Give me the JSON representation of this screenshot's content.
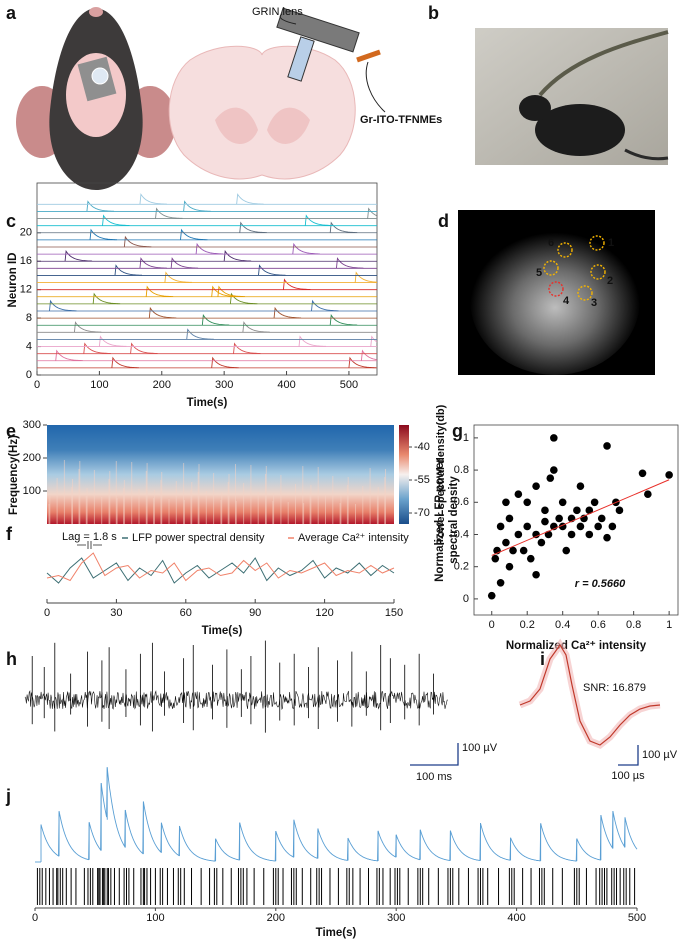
{
  "panel_a": {
    "label": "a",
    "grin_label": "GRIN lens",
    "electrode_label": "Gr-ITO-TFNMEs"
  },
  "panel_b": {
    "label": "b"
  },
  "panel_c": {
    "label": "c",
    "type": "line",
    "xlabel": "Time(s)",
    "ylabel": "Neuron ID",
    "xlim": [
      0,
      545
    ],
    "ylim": [
      0,
      27
    ],
    "xticks": [
      0,
      100,
      200,
      300,
      400,
      500
    ],
    "yticks": [
      0,
      4,
      8,
      12,
      16,
      20
    ],
    "neurons": [
      {
        "color": "#c0392b",
        "events": [
          120,
          280,
          500
        ]
      },
      {
        "color": "#e0719e",
        "events": [
          30,
          520
        ]
      },
      {
        "color": "#d94f4f",
        "events": [
          75,
          150,
          315
        ]
      },
      {
        "color": "#e9a3c9",
        "events": [
          100,
          420,
          535
        ]
      },
      {
        "color": "#5b7fa6",
        "events": [
          240
        ]
      },
      {
        "color": "#8a8a8a",
        "events": [
          60,
          330
        ]
      },
      {
        "color": "#2e8b57",
        "events": [
          265,
          470
        ]
      },
      {
        "color": "#a0522d",
        "events": [
          180,
          380
        ]
      },
      {
        "color": "#3b6ea8",
        "events": [
          20,
          440
        ]
      },
      {
        "color": "#6b8e23",
        "events": [
          90,
          310
        ]
      },
      {
        "color": "#e69f00",
        "events": [
          175,
          280,
          290
        ]
      },
      {
        "color": "#d62728",
        "events": [
          395
        ]
      },
      {
        "color": "#f2b134",
        "events": [
          205,
          510
        ]
      },
      {
        "color": "#2b4f81",
        "events": [
          125,
          355
        ]
      },
      {
        "color": "#7b3f8f",
        "events": [
          165,
          215,
          480
        ]
      },
      {
        "color": "#4b2a6b",
        "events": [
          45,
          300
        ]
      },
      {
        "color": "#9b59b6",
        "events": [
          255,
          410
        ]
      },
      {
        "color": "#8c564b",
        "events": [
          140
        ]
      },
      {
        "color": "#1f77b4",
        "events": [
          85,
          230
        ]
      },
      {
        "color": "#5d6d7e",
        "events": [
          325,
          470
        ]
      },
      {
        "color": "#17becf",
        "events": [
          105,
          430
        ]
      },
      {
        "color": "#7f8c8d",
        "events": [
          190,
          530
        ]
      },
      {
        "color": "#48a9c5",
        "events": [
          80,
          235
        ]
      },
      {
        "color": "#9ecae1",
        "events": [
          165,
          320
        ]
      }
    ]
  },
  "panel_d": {
    "label": "d",
    "rois": [
      {
        "label": "1",
        "color": "#f5b400"
      },
      {
        "label": "2",
        "color": "#f5b400"
      },
      {
        "label": "3",
        "color": "#f5b400"
      },
      {
        "label": "4",
        "color": "#e8302a"
      },
      {
        "label": "5",
        "color": "#f5b400"
      },
      {
        "label": "6",
        "color": "#f5b400"
      }
    ]
  },
  "panel_e": {
    "label": "e",
    "type": "heatmap",
    "ylabel": "Frequency(Hz)",
    "ylim": [
      0,
      300
    ],
    "yticks": [
      100,
      200,
      300
    ],
    "colorbar_label": "Power spectral density(db)",
    "zlim": [
      -30,
      -75
    ],
    "zticks": [
      -40,
      -55,
      -70
    ]
  },
  "panel_f": {
    "label": "f",
    "type": "line",
    "xlabel": "Time(s)",
    "xlim": [
      0,
      150
    ],
    "ylim": [
      0,
      1
    ],
    "xticks": [
      0,
      30,
      60,
      90,
      120,
      150
    ],
    "annotation": "Lag = 1.8 s",
    "x": [
      0,
      5,
      10,
      15,
      20,
      25,
      30,
      35,
      40,
      45,
      50,
      55,
      60,
      65,
      70,
      75,
      80,
      85,
      90,
      95,
      100,
      105,
      110,
      115,
      120,
      125,
      130,
      135,
      140,
      145,
      150
    ],
    "series": [
      {
        "name": "LFP power spectral density",
        "color": "#3d6f74",
        "values": [
          0.5,
          0.3,
          0.6,
          0.8,
          0.4,
          0.55,
          0.7,
          0.35,
          0.6,
          0.45,
          0.75,
          0.3,
          0.5,
          0.65,
          0.4,
          0.55,
          0.7,
          0.5,
          0.8,
          0.35,
          0.6,
          0.45,
          0.55,
          0.75,
          0.4,
          0.6,
          0.5,
          0.7,
          0.45,
          0.65,
          0.5
        ]
      },
      {
        "name": "Average Ca²⁺ intensity",
        "color": "#f0826a",
        "values": [
          0.4,
          0.45,
          0.35,
          0.7,
          0.9,
          0.45,
          0.6,
          0.65,
          0.4,
          0.55,
          0.5,
          0.7,
          0.35,
          0.55,
          0.6,
          0.45,
          0.5,
          0.75,
          0.55,
          0.7,
          0.4,
          0.55,
          0.5,
          0.6,
          0.7,
          0.45,
          0.55,
          0.5,
          0.65,
          0.5,
          0.6
        ]
      }
    ]
  },
  "panel_g": {
    "label": "g",
    "type": "scatter",
    "xlabel": "Normalized Ca²⁺ intensity",
    "ylabel": [
      "Normalized LFP power",
      "spectral density"
    ],
    "annotation": "r = 0.5660",
    "xlim": [
      -0.1,
      1.05
    ],
    "ylim": [
      -0.1,
      1.08
    ],
    "xticks": [
      0,
      0.2,
      0.4,
      0.6,
      0.8,
      1
    ],
    "yticks": [
      0,
      0.2,
      0.4,
      0.6,
      0.8,
      1
    ],
    "x": [
      0,
      0.02,
      0.03,
      0.05,
      0.05,
      0.08,
      0.1,
      0.1,
      0.12,
      0.15,
      0.15,
      0.18,
      0.2,
      0.2,
      0.22,
      0.25,
      0.25,
      0.28,
      0.3,
      0.3,
      0.32,
      0.33,
      0.35,
      0.35,
      0.38,
      0.4,
      0.4,
      0.42,
      0.45,
      0.45,
      0.48,
      0.5,
      0.5,
      0.52,
      0.55,
      0.55,
      0.58,
      0.6,
      0.62,
      0.65,
      0.68,
      0.7,
      0.72,
      0.85,
      0.88,
      1,
      0.08,
      0.35,
      0.65,
      0.25
    ],
    "y": [
      0.02,
      0.25,
      0.3,
      0.1,
      0.45,
      0.35,
      0.5,
      0.2,
      0.3,
      0.65,
      0.4,
      0.3,
      0.6,
      0.45,
      0.25,
      0.4,
      0.7,
      0.35,
      0.48,
      0.55,
      0.4,
      0.75,
      0.45,
      1.0,
      0.5,
      0.45,
      0.6,
      0.3,
      0.5,
      0.4,
      0.55,
      0.45,
      0.7,
      0.5,
      0.55,
      0.4,
      0.6,
      0.45,
      0.5,
      0.95,
      0.45,
      0.6,
      0.55,
      0.78,
      0.65,
      0.77,
      0.6,
      0.8,
      0.38,
      0.15
    ],
    "fit": {
      "x": [
        0,
        1
      ],
      "y": [
        0.27,
        0.74
      ],
      "color": "#e8302a"
    }
  },
  "panel_h": {
    "label": "h",
    "type": "trace",
    "xlim": [
      0,
      880
    ],
    "spike_times": [
      15,
      40,
      62,
      95,
      130,
      160,
      175,
      210,
      240,
      265,
      290,
      330,
      350,
      390,
      420,
      450,
      470,
      500,
      530,
      560,
      590,
      610,
      650,
      680,
      710,
      740,
      760,
      790,
      820,
      850
    ],
    "spike_amplitudes": [
      200,
      150,
      260,
      120,
      220,
      180,
      240,
      140,
      210,
      260,
      130,
      190,
      250,
      160,
      230,
      140,
      200,
      270,
      170,
      210,
      150,
      240,
      180,
      220,
      130,
      250,
      190,
      160,
      210,
      120
    ],
    "scale_x": {
      "value": 100,
      "label": "100 ms"
    },
    "scale_y": {
      "value": 100,
      "label": "100 µV"
    }
  },
  "panel_i": {
    "label": "i",
    "annotation": "SNR: 16.879",
    "x": [
      0,
      50,
      100,
      150,
      200,
      230,
      260,
      300,
      350,
      400,
      450,
      500,
      550,
      600,
      650,
      700
    ],
    "values": [
      0,
      20,
      80,
      230,
      300,
      250,
      100,
      -80,
      -180,
      -200,
      -160,
      -100,
      -50,
      -20,
      -5,
      0
    ],
    "color": "#c0392b",
    "scale_x": {
      "value": 100,
      "label": "100 µs"
    },
    "scale_y": {
      "value": 100,
      "label": "100 µV"
    }
  },
  "panel_j": {
    "label": "j",
    "xlabel": "Time(s)",
    "xlim": [
      0,
      500
    ],
    "xticks": [
      0,
      100,
      200,
      300,
      400,
      500
    ],
    "color": "#5a9fd4",
    "event_times": [
      5,
      20,
      45,
      55,
      60,
      75,
      90,
      105,
      120,
      150,
      170,
      200,
      215,
      235,
      260,
      285,
      300,
      320,
      345,
      370,
      395,
      420,
      450,
      470,
      480,
      490
    ],
    "event_amplitudes": [
      0.5,
      0.6,
      0.5,
      0.9,
      0.7,
      0.5,
      0.7,
      0.4,
      0.4,
      0.3,
      0.5,
      0.4,
      0.5,
      0.4,
      0.3,
      0.4,
      0.3,
      0.4,
      0.4,
      0.5,
      0.3,
      0.5,
      0.3,
      0.6,
      0.5,
      0.4
    ],
    "spike_times": [
      2,
      4,
      6,
      9,
      12,
      15,
      18,
      19,
      21,
      23,
      26,
      30,
      34,
      41,
      44,
      46,
      48,
      52,
      53,
      54,
      56,
      57,
      58,
      60,
      61,
      63,
      66,
      70,
      74,
      76,
      78,
      82,
      88,
      90,
      91,
      93,
      96,
      100,
      104,
      106,
      110,
      115,
      119,
      121,
      124,
      130,
      138,
      145,
      149,
      151,
      156,
      163,
      169,
      171,
      173,
      176,
      182,
      190,
      198,
      200,
      202,
      206,
      213,
      215,
      217,
      222,
      229,
      234,
      236,
      238,
      245,
      252,
      259,
      261,
      264,
      270,
      277,
      284,
      286,
      289,
      295,
      299,
      301,
      303,
      310,
      318,
      320,
      322,
      327,
      335,
      343,
      345,
      347,
      352,
      360,
      368,
      370,
      372,
      376,
      385,
      394,
      396,
      398,
      405,
      412,
      419,
      421,
      423,
      430,
      438,
      448,
      450,
      452,
      458,
      466,
      469,
      471,
      473,
      475,
      479,
      481,
      483,
      486,
      489,
      491,
      494,
      498
    ]
  }
}
